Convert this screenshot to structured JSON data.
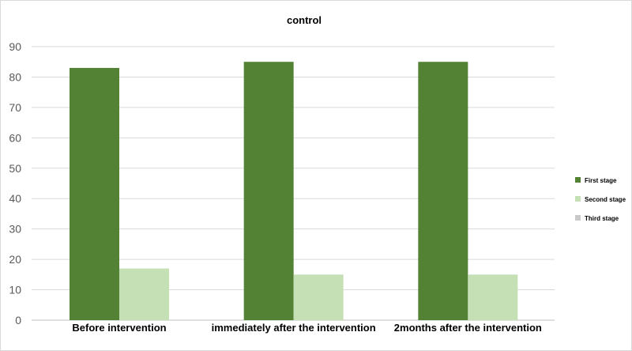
{
  "chart_data": {
    "type": "bar",
    "title": "control",
    "xlabel": "",
    "ylabel": "",
    "categories": [
      "Before intervention",
      "immediately after the intervention",
      "2months after the intervention"
    ],
    "series": [
      {
        "name": "First stage",
        "values": [
          83,
          85,
          85
        ],
        "color": "#548235"
      },
      {
        "name": "Second stage",
        "values": [
          17,
          15,
          15
        ],
        "color": "#c5e0b4"
      },
      {
        "name": "Third stage",
        "values": [
          0,
          0,
          0
        ],
        "color": "#c9c9c9"
      }
    ],
    "ylim": [
      0,
      90
    ],
    "yticks": [
      "0",
      "10",
      "20",
      "30",
      "40",
      "50",
      "60",
      "70",
      "80",
      "90"
    ],
    "grid": true,
    "legend_position": "right"
  }
}
